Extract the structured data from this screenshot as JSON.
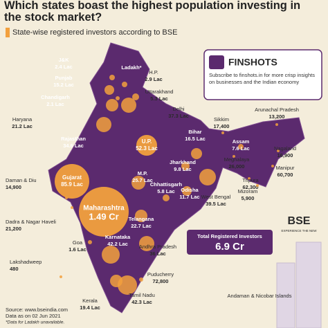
{
  "header": {
    "title": "Which states boast the highest population investing in the stock market?",
    "subtitle": "State-wise registered investors according to BSE"
  },
  "states": [
    {
      "name": "J&K",
      "value": "2.4 Lac"
    },
    {
      "name": "Ladakh*"
    },
    {
      "name": "Punjab",
      "value": "15.2 Lac"
    },
    {
      "name": "H.P.",
      "value": "2.9 Lac"
    },
    {
      "name": "Uttarakhand",
      "value": "5.3 Lac"
    },
    {
      "name": "Chandigarh",
      "value": "2.1 Lac"
    },
    {
      "name": "Haryana",
      "value": "21.2 Lac"
    },
    {
      "name": "Delhi",
      "value": "37.3 Lac"
    },
    {
      "name": "Rajasthan",
      "value": "34.6 Lac"
    },
    {
      "name": "U.P.",
      "value": "52.3 Lac"
    },
    {
      "name": "Sikkim",
      "value": "17,400"
    },
    {
      "name": "Arunachal Pradesh",
      "value": "13,200"
    },
    {
      "name": "Bihar",
      "value": "16.5 Lac"
    },
    {
      "name": "Assam",
      "value": "7.6 Lac"
    },
    {
      "name": "Nagaland",
      "value": "16,900"
    },
    {
      "name": "Meghalaya",
      "value": "26,000"
    },
    {
      "name": "Manipur",
      "value": "60,700"
    },
    {
      "name": "Jharkhand",
      "value": "9.8 Lac"
    },
    {
      "name": "Gujarat",
      "value": "85.9 Lac"
    },
    {
      "name": "M.P.",
      "value": "25.7 Lac"
    },
    {
      "name": "Chhattisgarh",
      "value": "5.8 Lac"
    },
    {
      "name": "Odisha",
      "value": "11.7 Lac"
    },
    {
      "name": "West Bengal",
      "value": "39.5 Lac"
    },
    {
      "name": "Tripura",
      "value": "62,300"
    },
    {
      "name": "Mizoram",
      "value": "5,900"
    },
    {
      "name": "Daman & Diu",
      "value": "14,900"
    },
    {
      "name": "Maharashtra",
      "value": "1.49 Cr"
    },
    {
      "name": "Telangana",
      "value": "22.7 Lac"
    },
    {
      "name": "Dadra & Nagar Haveli",
      "value": "21,200"
    },
    {
      "name": "Karnataka",
      "value": "42.2 Lac"
    },
    {
      "name": "Goa",
      "value": "1.6 Lac"
    },
    {
      "name": "Andhra Pradesh",
      "value": "36 Lac"
    },
    {
      "name": "Lakshadweep",
      "value": "480"
    },
    {
      "name": "Puducherry",
      "value": "72,800"
    },
    {
      "name": "Kerala",
      "value": "19.4 Lac"
    },
    {
      "name": "Tamil Nadu",
      "value": "42.3 Lac"
    },
    {
      "name": "Andaman & Nicobar Islands"
    }
  ],
  "promo": {
    "brand": "FINSHOTS",
    "text": "Subscribe to finshots.in for more crisp insights on businesses and the Indian economy"
  },
  "total": {
    "label": "Total Registered Investors",
    "value": "6.9 Cr"
  },
  "logo": {
    "name": "BSE",
    "tagline": "EXPERIENCE THE NEW"
  },
  "footer": {
    "source": "Source: www.bseindia.com",
    "date": "Data as on 02 Jun 2021",
    "note": "*Data for Ladakh unavailable."
  }
}
